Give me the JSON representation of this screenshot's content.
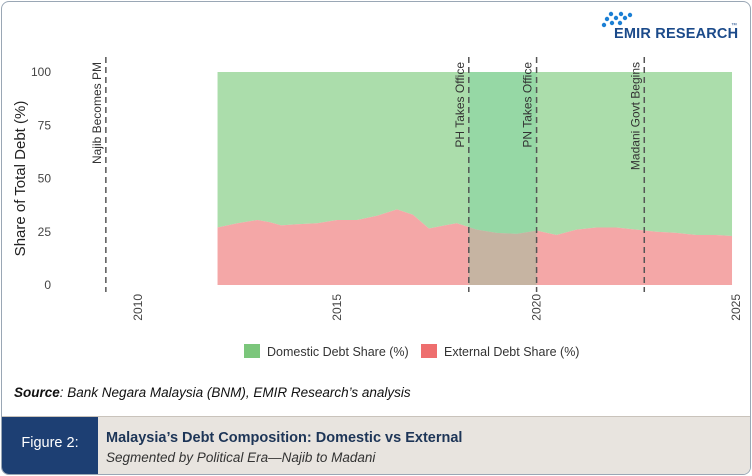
{
  "logo": {
    "text": "EMIR RESEARCH",
    "tm": "™"
  },
  "source": {
    "label": "Source",
    "text": ": Bank Negara Malaysia (BNM), EMIR Research’s analysis"
  },
  "caption": {
    "figure_label": "Figure 2:",
    "title": "Malaysia’s Debt Composition: Domestic vs External",
    "subtitle": "Segmented by Political Era—Najib to Madani"
  },
  "colors": {
    "domestic": "#8fd18f",
    "external": "#f08a8a",
    "highlight": "#6fcf9c",
    "legend_domestic": "#7bc67b",
    "legend_external": "#ee6e6e"
  },
  "chart_data": {
    "type": "area",
    "stacked": true,
    "title": "",
    "xlabel": "",
    "ylabel": "Share of Total Debt (%)",
    "xlim": [
      2008,
      2025
    ],
    "ylim": [
      0,
      100
    ],
    "x_ticks": [
      2010,
      2015,
      2020,
      2025
    ],
    "y_ticks": [
      0,
      25,
      50,
      75,
      100
    ],
    "grid": false,
    "legend_position": "bottom",
    "x": [
      2012.0,
      2012.5,
      2013.0,
      2013.3,
      2013.6,
      2014.0,
      2014.5,
      2015.0,
      2015.5,
      2016.0,
      2016.5,
      2016.9,
      2017.3,
      2017.7,
      2018.0,
      2018.5,
      2019.0,
      2019.5,
      2020.0,
      2020.5,
      2021.0,
      2021.5,
      2022.0,
      2022.5,
      2023.0,
      2023.5,
      2024.0,
      2024.5,
      2024.9
    ],
    "series": [
      {
        "name": "External Debt Share (%)",
        "values": [
          27,
          29,
          30.5,
          29.5,
          28,
          28.5,
          29,
          30.5,
          30.5,
          32.5,
          35.5,
          33,
          26.5,
          28,
          29,
          26,
          24.5,
          24,
          25.5,
          23.5,
          26,
          27,
          27,
          26,
          25,
          24.5,
          23.5,
          23.5,
          23
        ]
      },
      {
        "name": "Domestic Debt Share (%)",
        "values": [
          73,
          71,
          69.5,
          70.5,
          72,
          71.5,
          71,
          69.5,
          69.5,
          67.5,
          64.5,
          67,
          73.5,
          72,
          71,
          74,
          75.5,
          76,
          74.5,
          76.5,
          74,
          73,
          73,
          74,
          75,
          75.5,
          76.5,
          76.5,
          77
        ]
      }
    ],
    "highlight_range": [
      2018.3,
      2020.0
    ],
    "events": [
      {
        "x": 2009.2,
        "label": "Najib Becomes PM"
      },
      {
        "x": 2018.3,
        "label": "PH Takes Office"
      },
      {
        "x": 2020.0,
        "label": "PN Takes Office"
      },
      {
        "x": 2022.7,
        "label": "Madani Govt Begins"
      }
    ]
  }
}
